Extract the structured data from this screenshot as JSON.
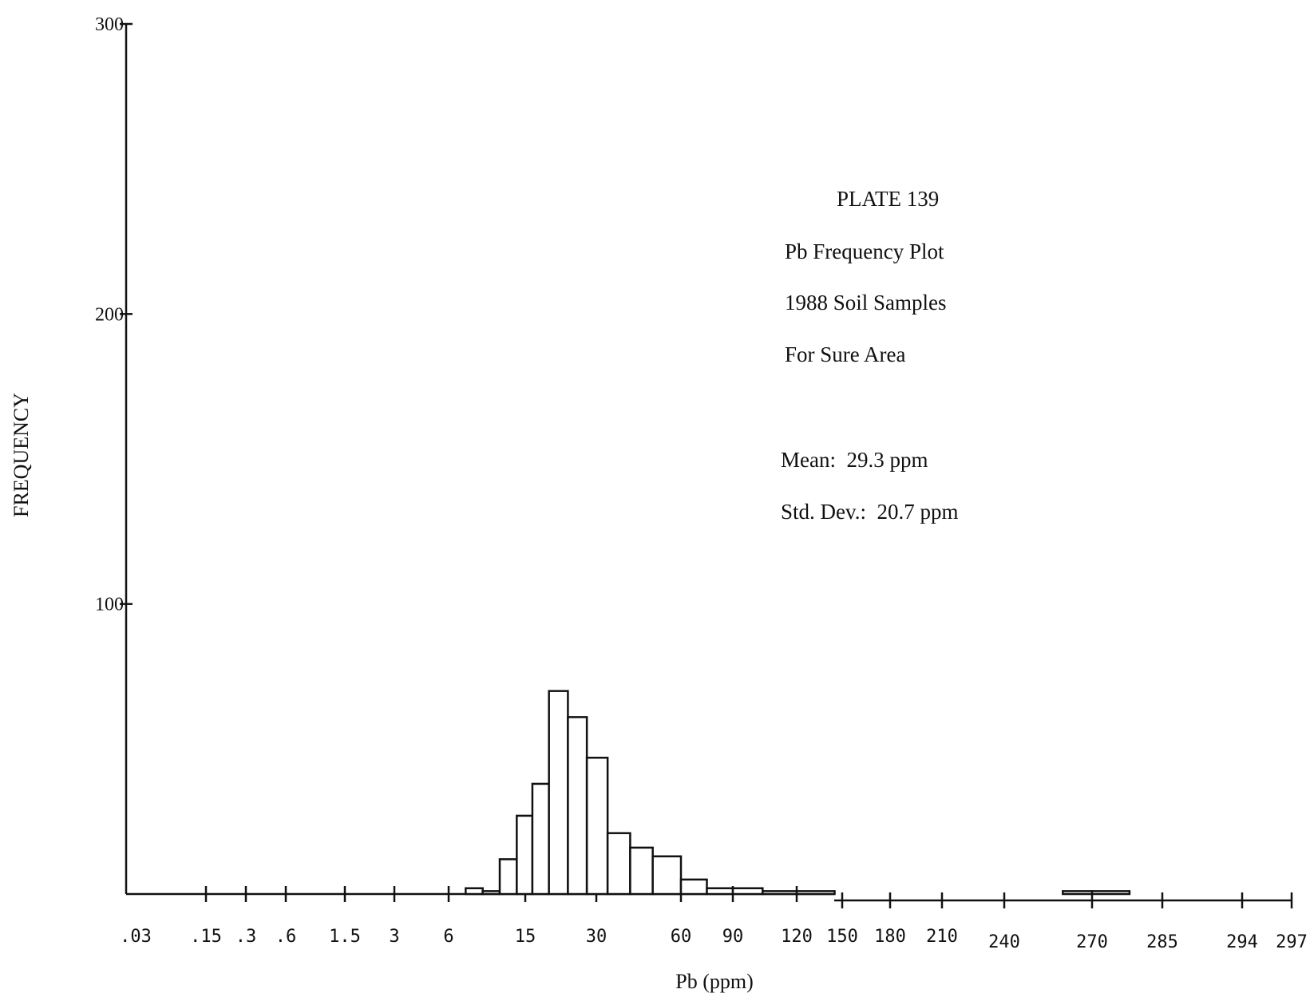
{
  "chart_data": {
    "type": "bar",
    "title": "Pb Frequency Plot",
    "annotations": {
      "plate": "PLATE 139",
      "title": "Pb Frequency Plot",
      "subtitle": "1988 Soil Samples",
      "area": "For Sure Area",
      "mean": "Mean:  29.3 ppm",
      "std_dev": "Std. Dev.:  20.7 ppm"
    },
    "xlabel": "Pb (ppm)",
    "ylabel": "FREQUENCY",
    "ylim": [
      0,
      300
    ],
    "y_ticks": [
      "100",
      "200",
      "300"
    ],
    "y_tick_values": [
      100,
      200,
      300
    ],
    "x_ticks": [
      ".03",
      ".15",
      ".3",
      ".6",
      "1.5",
      "3",
      "6",
      "15",
      "30",
      "60",
      "90",
      "120",
      "150",
      "180",
      "210",
      "240",
      "270",
      "285",
      "294",
      "297"
    ],
    "bars": [
      {
        "x_from": 8.0,
        "x_to": 10.0,
        "value": 2
      },
      {
        "x_from": 10.0,
        "x_to": 12.0,
        "value": 1
      },
      {
        "x_from": 12.0,
        "x_to": 14.0,
        "value": 12
      },
      {
        "x_from": 14.0,
        "x_to": 16.5,
        "value": 27
      },
      {
        "x_from": 16.5,
        "x_to": 20.0,
        "value": 38
      },
      {
        "x_from": 20.0,
        "x_to": 24.0,
        "value": 70
      },
      {
        "x_from": 24.0,
        "x_to": 28.0,
        "value": 61
      },
      {
        "x_from": 28.0,
        "x_to": 34.0,
        "value": 47
      },
      {
        "x_from": 34.0,
        "x_to": 42.0,
        "value": 21
      },
      {
        "x_from": 42.0,
        "x_to": 50.0,
        "value": 16
      },
      {
        "x_from": 50.0,
        "x_to": 60.0,
        "value": 13
      },
      {
        "x_from": 60.0,
        "x_to": 75.0,
        "value": 5
      },
      {
        "x_from": 75.0,
        "x_to": 90.0,
        "value": 2
      },
      {
        "x_from": 90.0,
        "x_to": 104.0,
        "value": 2
      },
      {
        "x_from": 104.0,
        "x_to": 120.0,
        "value": 1
      },
      {
        "x_from": 120.0,
        "x_to": 145.0,
        "value": 1
      },
      {
        "x_from": 260.0,
        "x_to": 270.0,
        "value": 1
      },
      {
        "x_from": 270.0,
        "x_to": 278.0,
        "value": 1
      }
    ],
    "grid": false,
    "x_scale": "nonlinear (tick positions as printed)"
  }
}
